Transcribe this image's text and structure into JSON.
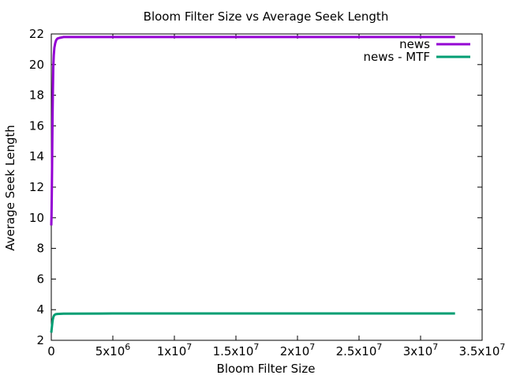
{
  "chart_data": {
    "type": "line",
    "title": "Bloom Filter Size vs Average Seek Length",
    "xlabel": "Bloom Filter Size",
    "ylabel": "Average Seek Length",
    "xlim": [
      0,
      35000000
    ],
    "ylim": [
      2,
      22
    ],
    "x_ticks": [
      {
        "value": 0,
        "base": "0",
        "exp": ""
      },
      {
        "value": 5000000,
        "base": "5x10",
        "exp": "6"
      },
      {
        "value": 10000000,
        "base": "1x10",
        "exp": "7"
      },
      {
        "value": 15000000,
        "base": "1.5x10",
        "exp": "7"
      },
      {
        "value": 20000000,
        "base": "2x10",
        "exp": "7"
      },
      {
        "value": 25000000,
        "base": "2.5x10",
        "exp": "7"
      },
      {
        "value": 30000000,
        "base": "3x10",
        "exp": "7"
      },
      {
        "value": 35000000,
        "base": "3.5x10",
        "exp": "7"
      }
    ],
    "y_ticks": [
      2,
      4,
      6,
      8,
      10,
      12,
      14,
      16,
      18,
      20,
      22
    ],
    "grid": false,
    "legend_position": "top-right",
    "series": [
      {
        "name": "news",
        "color": "#9400d3",
        "points": [
          [
            0,
            9.5
          ],
          [
            20000,
            10.2
          ],
          [
            40000,
            11.5
          ],
          [
            60000,
            13.0
          ],
          [
            80000,
            14.8
          ],
          [
            100000,
            16.5
          ],
          [
            130000,
            18.3
          ],
          [
            160000,
            19.8
          ],
          [
            200000,
            20.6
          ],
          [
            250000,
            21.1
          ],
          [
            320000,
            21.4
          ],
          [
            400000,
            21.6
          ],
          [
            500000,
            21.7
          ],
          [
            700000,
            21.75
          ],
          [
            1000000,
            21.8
          ],
          [
            5000000,
            21.8
          ],
          [
            10000000,
            21.8
          ],
          [
            20000000,
            21.8
          ],
          [
            32800000,
            21.8
          ]
        ]
      },
      {
        "name": "news - MTF",
        "color": "#009e73",
        "points": [
          [
            0,
            2.5
          ],
          [
            40000,
            2.8
          ],
          [
            80000,
            3.1
          ],
          [
            120000,
            3.35
          ],
          [
            180000,
            3.55
          ],
          [
            250000,
            3.65
          ],
          [
            350000,
            3.7
          ],
          [
            500000,
            3.72
          ],
          [
            1000000,
            3.74
          ],
          [
            5000000,
            3.75
          ],
          [
            10000000,
            3.75
          ],
          [
            20000000,
            3.75
          ],
          [
            32800000,
            3.75
          ]
        ]
      }
    ]
  }
}
